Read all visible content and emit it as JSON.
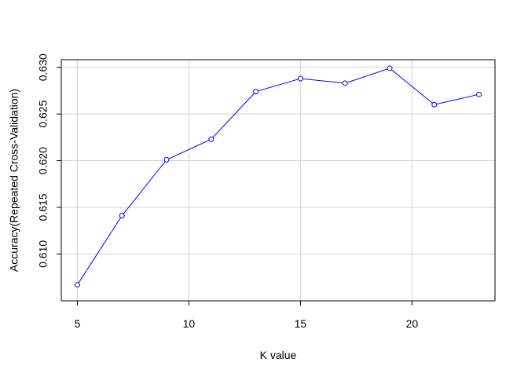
{
  "chart_data": {
    "type": "line",
    "title": "",
    "xlabel": "K value",
    "ylabel": "Accuracy(Repeated Cross-Validation)",
    "x": [
      5,
      7,
      9,
      11,
      13,
      15,
      17,
      19,
      21,
      23
    ],
    "series": [
      {
        "values": [
          0.6067,
          0.6141,
          0.6201,
          0.6223,
          0.6274,
          0.6288,
          0.6283,
          0.6299,
          0.626,
          0.6271
        ],
        "color": "#0000ff",
        "marker": "open-circle"
      }
    ],
    "xlim": [
      4.28,
      23.72
    ],
    "ylim": [
      0.60498,
      0.63082
    ],
    "xticks": [
      5,
      10,
      15,
      20
    ],
    "yticks": [
      0.61,
      0.615,
      0.62,
      0.625,
      0.63
    ],
    "xtick_labels": [
      "5",
      "10",
      "15",
      "20"
    ],
    "ytick_labels": [
      "0.610",
      "0.615",
      "0.620",
      "0.625",
      "0.630"
    ],
    "grid": true,
    "grid_color": "#d3d3d3",
    "legend": "none"
  }
}
